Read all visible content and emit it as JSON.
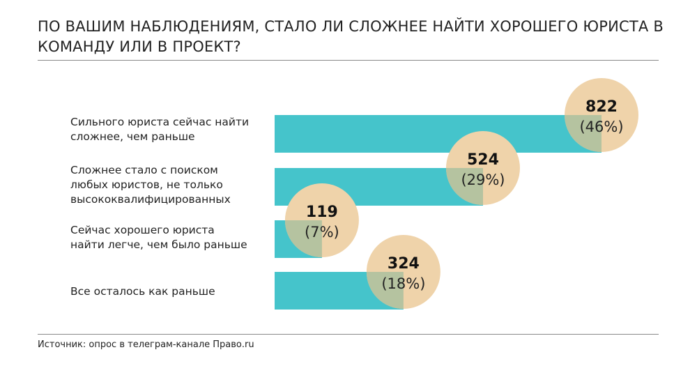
{
  "chart_data": {
    "type": "bar",
    "title": "ПО ВАШИМ НАБЛЮДЕНИЯМ, СТАЛО ЛИ СЛОЖНЕЕ НАЙТИ ХОРОШЕГО ЮРИСТА В КОМАНДУ ИЛИ В ПРОЕКТ?",
    "categories": [
      "Сильного юриста сейчас найти\nсложнее, чем раньше",
      "Сложнее стало с поиском\nлюбых юристов, не только\nвысококвалифицированных",
      "Сейчас хорошего юриста\nнайти легче, чем было раньше",
      "Все осталось как раньше"
    ],
    "values": [
      822,
      524,
      119,
      324
    ],
    "percent_labels": [
      "(46%)",
      "(29%)",
      "(7%)",
      "(18%)"
    ],
    "value_labels": [
      "822",
      "524",
      "119",
      "324"
    ],
    "orientation": "horizontal",
    "xlim": [
      0,
      822
    ],
    "grid": false
  },
  "source": "Источник: опрос в телеграм-канале Право.ru",
  "colors": {
    "bar": "#45C4CB",
    "circle": "#EFD3AA",
    "overlap": "#B5C3A0"
  }
}
